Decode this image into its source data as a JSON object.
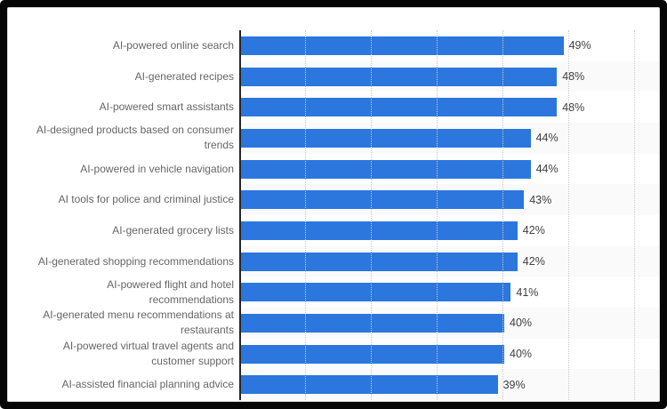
{
  "chart_data": {
    "type": "bar",
    "orientation": "horizontal",
    "title": "",
    "xlabel": "",
    "ylabel": "",
    "categories": [
      "AI-powered online search",
      "AI-generated recipes",
      "AI-powered smart assistants",
      "AI-designed products based on consumer trends",
      "AI-powered in vehicle navigation",
      "AI tools for police and criminal justice",
      "AI-generated grocery lists",
      "AI-generated shopping recommendations",
      "AI-powered flight and hotel recommendations",
      "AI-generated menu recommendations at restaurants",
      "AI-powered virtual travel agents and customer support",
      "AI-assisted financial planning advice"
    ],
    "values": [
      49,
      48,
      48,
      44,
      44,
      43,
      42,
      42,
      41,
      40,
      40,
      39
    ],
    "value_labels": [
      "49%",
      "48%",
      "48%",
      "44%",
      "44%",
      "43%",
      "42%",
      "42%",
      "41%",
      "40%",
      "40%",
      "39%"
    ],
    "xlim": [
      0,
      60
    ],
    "gridline_interval": 10,
    "grid": "vertical-dotted",
    "legend": "none",
    "colors": {
      "bar": "#2b77dd",
      "row_stripe": "#fafafa",
      "category_label": "#666666",
      "value_label": "#3f3f3f",
      "axis_line": "#262626",
      "gridline": "#c9c9c9",
      "frame": "#060606",
      "background": "#ffffff"
    }
  }
}
